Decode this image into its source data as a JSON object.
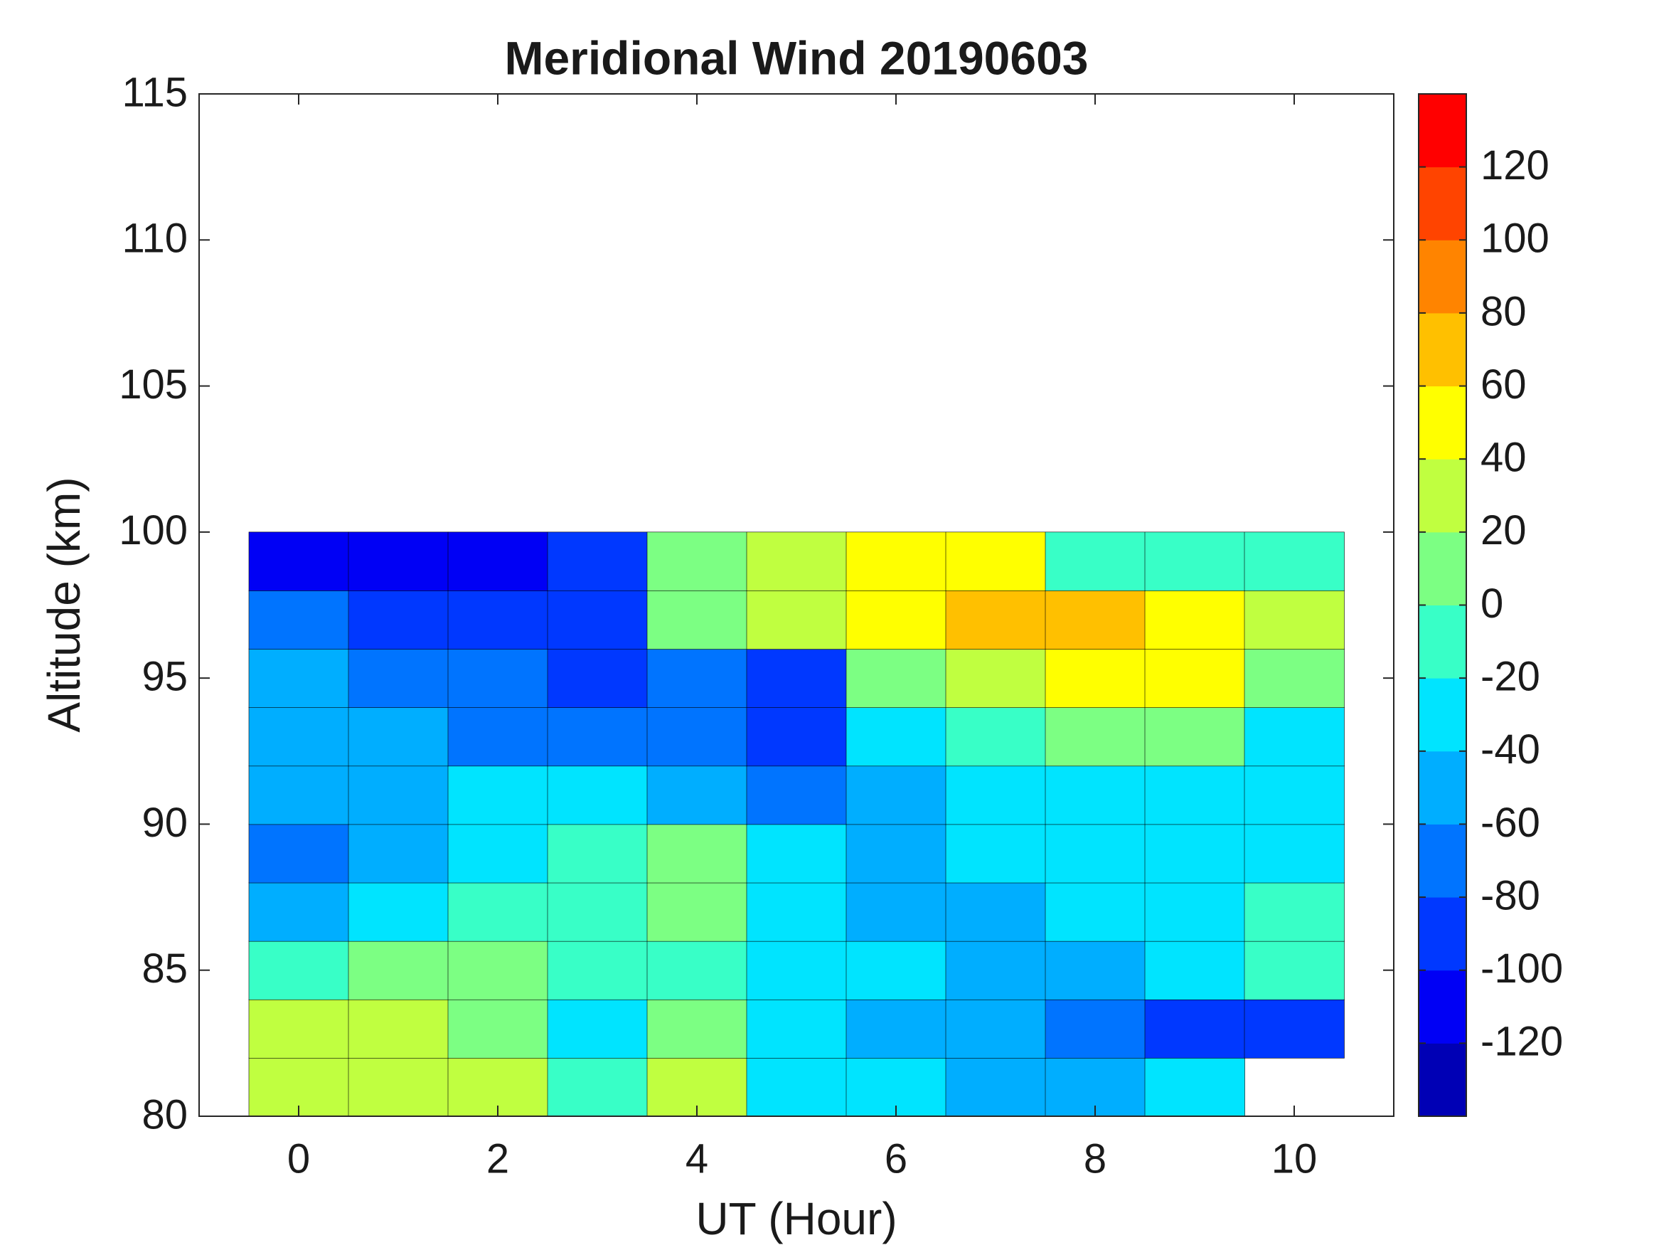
{
  "chart_data": {
    "type": "heatmap",
    "title": "Meridional Wind 20190603",
    "xlabel": "UT (Hour)",
    "ylabel": "Altitude (km)",
    "x": [
      0,
      1,
      2,
      3,
      4,
      5,
      6,
      7,
      8,
      9,
      10
    ],
    "y": [
      81,
      83,
      85,
      87,
      89,
      91,
      93,
      95,
      97,
      99
    ],
    "z": [
      [
        20,
        20,
        20,
        -20,
        20,
        -40,
        -40,
        -60,
        -60,
        -40,
        null
      ],
      [
        20,
        20,
        0,
        -40,
        0,
        -40,
        -60,
        -60,
        -80,
        -100,
        -100
      ],
      [
        -20,
        0,
        0,
        -20,
        -20,
        -40,
        -40,
        -60,
        -60,
        -40,
        -20
      ],
      [
        -60,
        -40,
        -20,
        -20,
        0,
        -40,
        -60,
        -60,
        -40,
        -40,
        -20
      ],
      [
        -80,
        -60,
        -40,
        -20,
        0,
        -40,
        -60,
        -40,
        -40,
        -40,
        -40
      ],
      [
        -60,
        -60,
        -40,
        -40,
        -60,
        -80,
        -60,
        -40,
        -40,
        -40,
        -40
      ],
      [
        -60,
        -60,
        -80,
        -80,
        -80,
        -100,
        -40,
        -20,
        0,
        0,
        -40
      ],
      [
        -60,
        -80,
        -80,
        -100,
        -80,
        -100,
        0,
        20,
        40,
        40,
        0
      ],
      [
        -80,
        -100,
        -100,
        -100,
        0,
        20,
        40,
        60,
        60,
        40,
        20
      ],
      [
        -120,
        -120,
        -120,
        -100,
        0,
        20,
        40,
        40,
        -20,
        -20,
        -20
      ]
    ],
    "xlim": [
      -1,
      11
    ],
    "xticks": [
      0,
      2,
      4,
      6,
      8,
      10
    ],
    "ylim": [
      80,
      115
    ],
    "yticks": [
      80,
      85,
      90,
      95,
      100,
      105,
      110,
      115
    ],
    "clim": [
      -140,
      140
    ],
    "cticks": [
      -120,
      -100,
      -80,
      -60,
      -40,
      -20,
      0,
      20,
      40,
      60,
      80,
      100,
      120
    ],
    "colormap": [
      "#0000b5",
      "#0000f5",
      "#0038ff",
      "#0074ff",
      "#00aeff",
      "#00e4ff",
      "#38ffc7",
      "#7cff83",
      "#c0ff40",
      "#ffff00",
      "#ffc000",
      "#ff8400",
      "#ff4400",
      "#ff0000"
    ],
    "grid": false
  }
}
